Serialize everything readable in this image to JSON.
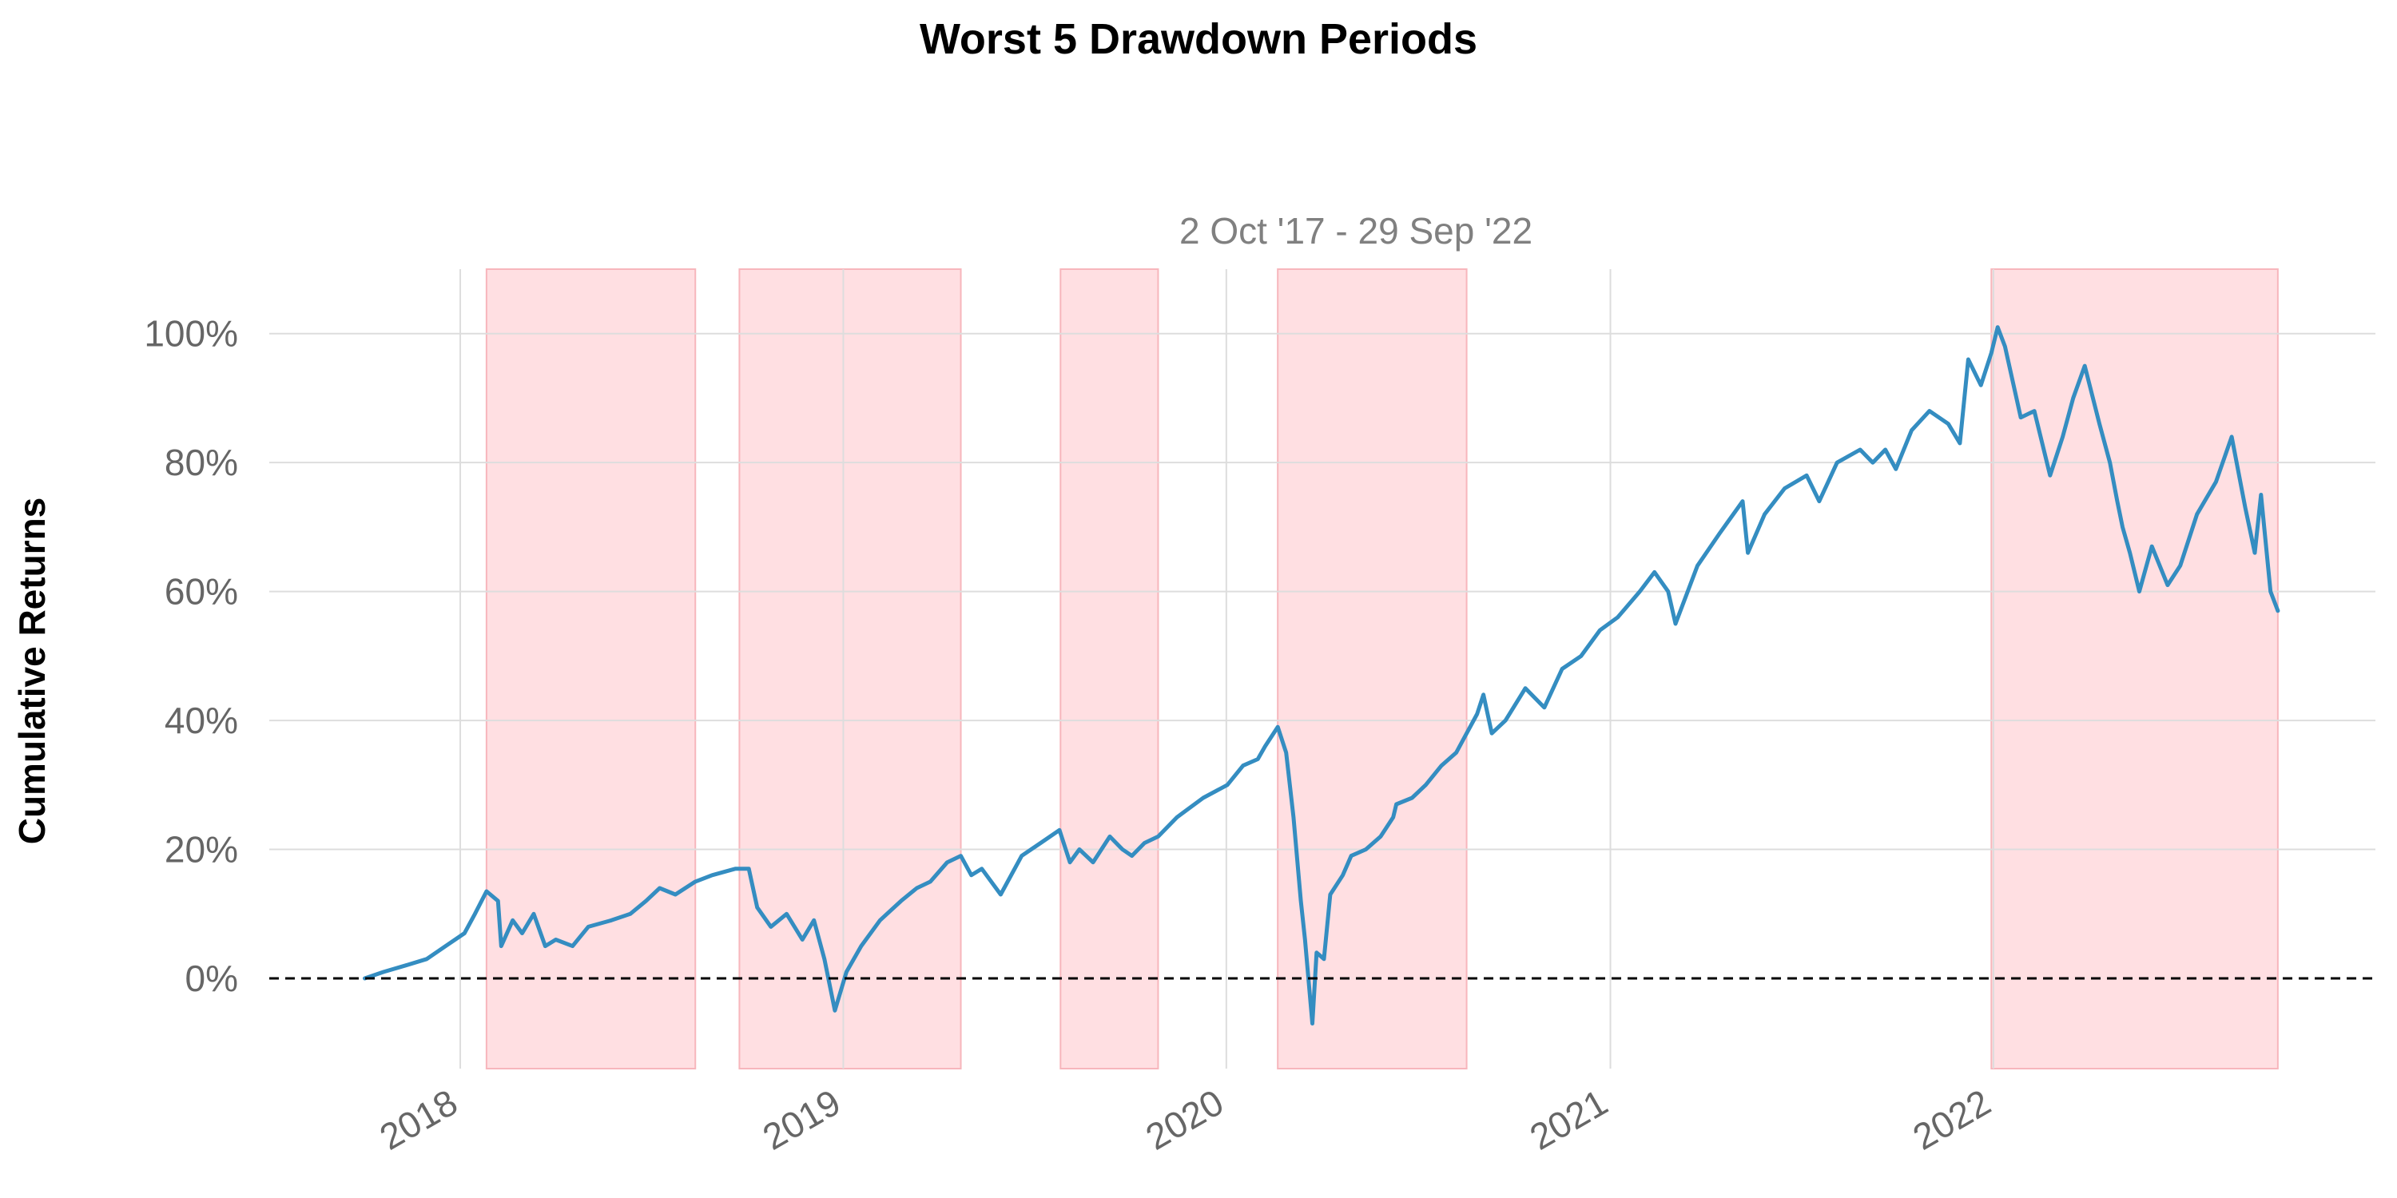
{
  "chart_data": {
    "type": "line",
    "title": "Worst 5 Drawdown Periods",
    "subtitle": "2 Oct '17 - 29 Sep '22",
    "ylabel": "Cumulative Returns",
    "xlabel": "",
    "x_ticks": [
      "2018",
      "2019",
      "2020",
      "2021",
      "2022"
    ],
    "y_ticks": [
      "0%",
      "20%",
      "40%",
      "60%",
      "80%",
      "100%"
    ],
    "x_range": [
      "2017-07-03",
      "2022-12-31"
    ],
    "ylim": [
      -0.14,
      1.1
    ],
    "grid": true,
    "baseline": 0,
    "colors": {
      "line": "#348dc1",
      "shade": "#ffdfe2",
      "shade_edge": "#f7b6bc",
      "grid": "#dddddd",
      "baseline": "#000000"
    },
    "drawdown_periods": [
      {
        "start": "2018-01-26",
        "end": "2018-08-13"
      },
      {
        "start": "2018-09-24",
        "end": "2019-04-23"
      },
      {
        "start": "2019-07-27",
        "end": "2019-10-28"
      },
      {
        "start": "2020-02-19",
        "end": "2020-08-17"
      },
      {
        "start": "2021-12-30",
        "end": "2022-09-29"
      }
    ],
    "series": [
      {
        "x": [
          "2017-10-02",
          "2017-10-20",
          "2017-11-10",
          "2017-11-30",
          "2017-12-18",
          "2018-01-05",
          "2018-01-15",
          "2018-01-26",
          "2018-02-06",
          "2018-02-09",
          "2018-02-20",
          "2018-03-01",
          "2018-03-12",
          "2018-03-23",
          "2018-04-02",
          "2018-04-18",
          "2018-05-03",
          "2018-05-25",
          "2018-06-12",
          "2018-06-27",
          "2018-07-10",
          "2018-07-25",
          "2018-08-13",
          "2018-08-29",
          "2018-09-20",
          "2018-10-03",
          "2018-10-11",
          "2018-10-24",
          "2018-11-08",
          "2018-11-23",
          "2018-12-04",
          "2018-12-14",
          "2018-12-24",
          "2019-01-04",
          "2019-01-18",
          "2019-02-05",
          "2019-02-25",
          "2019-03-12",
          "2019-03-25",
          "2019-04-10",
          "2019-04-23",
          "2019-05-03",
          "2019-05-13",
          "2019-05-31",
          "2019-06-20",
          "2019-07-08",
          "2019-07-26",
          "2019-08-05",
          "2019-08-14",
          "2019-08-27",
          "2019-09-12",
          "2019-09-24",
          "2019-10-03",
          "2019-10-15",
          "2019-10-28",
          "2019-11-15",
          "2019-12-10",
          "2020-01-02",
          "2020-01-17",
          "2020-01-31",
          "2020-02-07",
          "2020-02-19",
          "2020-02-27",
          "2020-03-05",
          "2020-03-12",
          "2020-03-16",
          "2020-03-23",
          "2020-03-27",
          "2020-04-03",
          "2020-04-09",
          "2020-04-21",
          "2020-04-29",
          "2020-05-13",
          "2020-05-27",
          "2020-06-08",
          "2020-06-11",
          "2020-06-26",
          "2020-07-09",
          "2020-07-24",
          "2020-08-07",
          "2020-08-17",
          "2020-08-27",
          "2020-09-02",
          "2020-09-10",
          "2020-09-23",
          "2020-10-12",
          "2020-10-30",
          "2020-11-16",
          "2020-12-04",
          "2020-12-22",
          "2021-01-08",
          "2021-01-29",
          "2021-02-12",
          "2021-02-25",
          "2021-03-04",
          "2021-03-25",
          "2021-04-15",
          "2021-05-07",
          "2021-05-12",
          "2021-05-28",
          "2021-06-16",
          "2021-07-07",
          "2021-07-19",
          "2021-08-05",
          "2021-08-27",
          "2021-09-08",
          "2021-09-20",
          "2021-09-30",
          "2021-10-15",
          "2021-11-01",
          "2021-11-19",
          "2021-11-30",
          "2021-12-08",
          "2021-12-20",
          "2021-12-30",
          "2022-01-05",
          "2022-01-12",
          "2022-01-27",
          "2022-02-09",
          "2022-02-24",
          "2022-03-08",
          "2022-03-18",
          "2022-03-29",
          "2022-04-12",
          "2022-04-22",
          "2022-04-29",
          "2022-05-04",
          "2022-05-11",
          "2022-05-20",
          "2022-06-01",
          "2022-06-16",
          "2022-06-28",
          "2022-07-14",
          "2022-08-01",
          "2022-08-16",
          "2022-08-29",
          "2022-09-07",
          "2022-09-13",
          "2022-09-22",
          "2022-09-29"
        ],
        "y": [
          0.0,
          0.01,
          0.02,
          0.03,
          0.05,
          0.07,
          0.1,
          0.135,
          0.12,
          0.05,
          0.09,
          0.07,
          0.1,
          0.05,
          0.06,
          0.05,
          0.08,
          0.09,
          0.1,
          0.12,
          0.14,
          0.13,
          0.15,
          0.16,
          0.17,
          0.17,
          0.11,
          0.08,
          0.1,
          0.06,
          0.09,
          0.03,
          -0.05,
          0.01,
          0.05,
          0.09,
          0.12,
          0.14,
          0.15,
          0.18,
          0.19,
          0.16,
          0.17,
          0.13,
          0.19,
          0.21,
          0.23,
          0.18,
          0.2,
          0.18,
          0.22,
          0.2,
          0.19,
          0.21,
          0.22,
          0.25,
          0.28,
          0.3,
          0.33,
          0.34,
          0.36,
          0.39,
          0.35,
          0.25,
          0.12,
          0.06,
          -0.07,
          0.04,
          0.03,
          0.13,
          0.16,
          0.19,
          0.2,
          0.22,
          0.25,
          0.27,
          0.28,
          0.3,
          0.33,
          0.35,
          0.38,
          0.41,
          0.44,
          0.38,
          0.4,
          0.45,
          0.42,
          0.48,
          0.5,
          0.54,
          0.56,
          0.6,
          0.63,
          0.6,
          0.55,
          0.64,
          0.69,
          0.74,
          0.66,
          0.72,
          0.76,
          0.78,
          0.74,
          0.8,
          0.82,
          0.8,
          0.82,
          0.79,
          0.85,
          0.88,
          0.86,
          0.83,
          0.96,
          0.92,
          0.97,
          1.01,
          0.98,
          0.87,
          0.88,
          0.78,
          0.84,
          0.9,
          0.95,
          0.86,
          0.8,
          0.74,
          0.7,
          0.66,
          0.6,
          0.67,
          0.61,
          0.64,
          0.72,
          0.77,
          0.84,
          0.73,
          0.66,
          0.75,
          0.6,
          0.57
        ]
      }
    ]
  }
}
